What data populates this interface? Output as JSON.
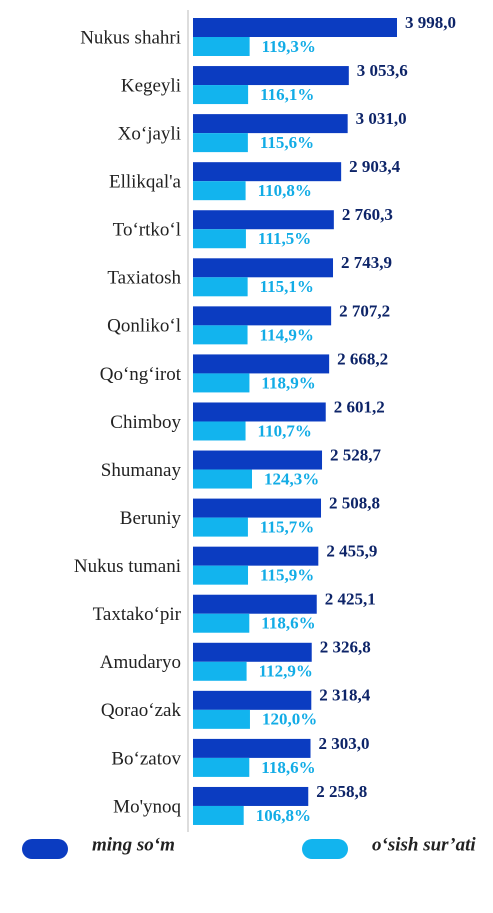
{
  "chart_data": {
    "type": "bar",
    "orientation": "horizontal",
    "categories": [
      "Nukus shahri",
      "Kegeyli",
      "Xo‘jayli",
      "Ellikqal'a",
      "To‘rtko‘l",
      "Taxiatosh",
      "Qonliko‘l",
      "Qo‘ng‘irot",
      "Chimboy",
      "Shumanay",
      "Beruniy",
      "Nukus tumani",
      "Taxtako‘pir",
      "Amudaryo",
      "Qorao‘zak",
      "Bo‘zatov",
      "Mo'ynoq"
    ],
    "series": [
      {
        "name": "ming so‘m",
        "color": "#0b3cc1",
        "label_color": "#0d2468",
        "values": [
          3998.0,
          3053.6,
          3031.0,
          2903.4,
          2760.3,
          2743.9,
          2707.2,
          2668.2,
          2601.2,
          2528.7,
          2508.8,
          2455.9,
          2425.1,
          2326.8,
          2318.4,
          2303.0,
          2258.8
        ],
        "value_labels": [
          "3 998,0",
          "3 053,6",
          "3 031,0",
          "2 903,4",
          "2 760,3",
          "2 743,9",
          "2 707,2",
          "2 668,2",
          "2 601,2",
          "2 528,7",
          "2 508,8",
          "2 455,9",
          "2 425,1",
          "2 326,8",
          "2 318,4",
          "2 303,0",
          "2 258,8"
        ]
      },
      {
        "name": "o‘sish sur’ati",
        "color": "#12b4ee",
        "label_color": "#12ace6",
        "values": [
          119.3,
          116.1,
          115.6,
          110.8,
          111.5,
          115.1,
          114.9,
          118.9,
          110.7,
          124.3,
          115.7,
          115.9,
          118.6,
          112.9,
          120.0,
          118.6,
          106.8
        ],
        "value_labels": [
          "119,3%",
          "116,1%",
          "115,6%",
          "110,8%",
          "111,5%",
          "115,1%",
          "114,9%",
          "118,9%",
          "110,7%",
          "124,3%",
          "115,7%",
          "115,9%",
          "118,6%",
          "112,9%",
          "120,0%",
          "118,6%",
          "106,8%"
        ]
      }
    ],
    "legend": "bottom"
  }
}
